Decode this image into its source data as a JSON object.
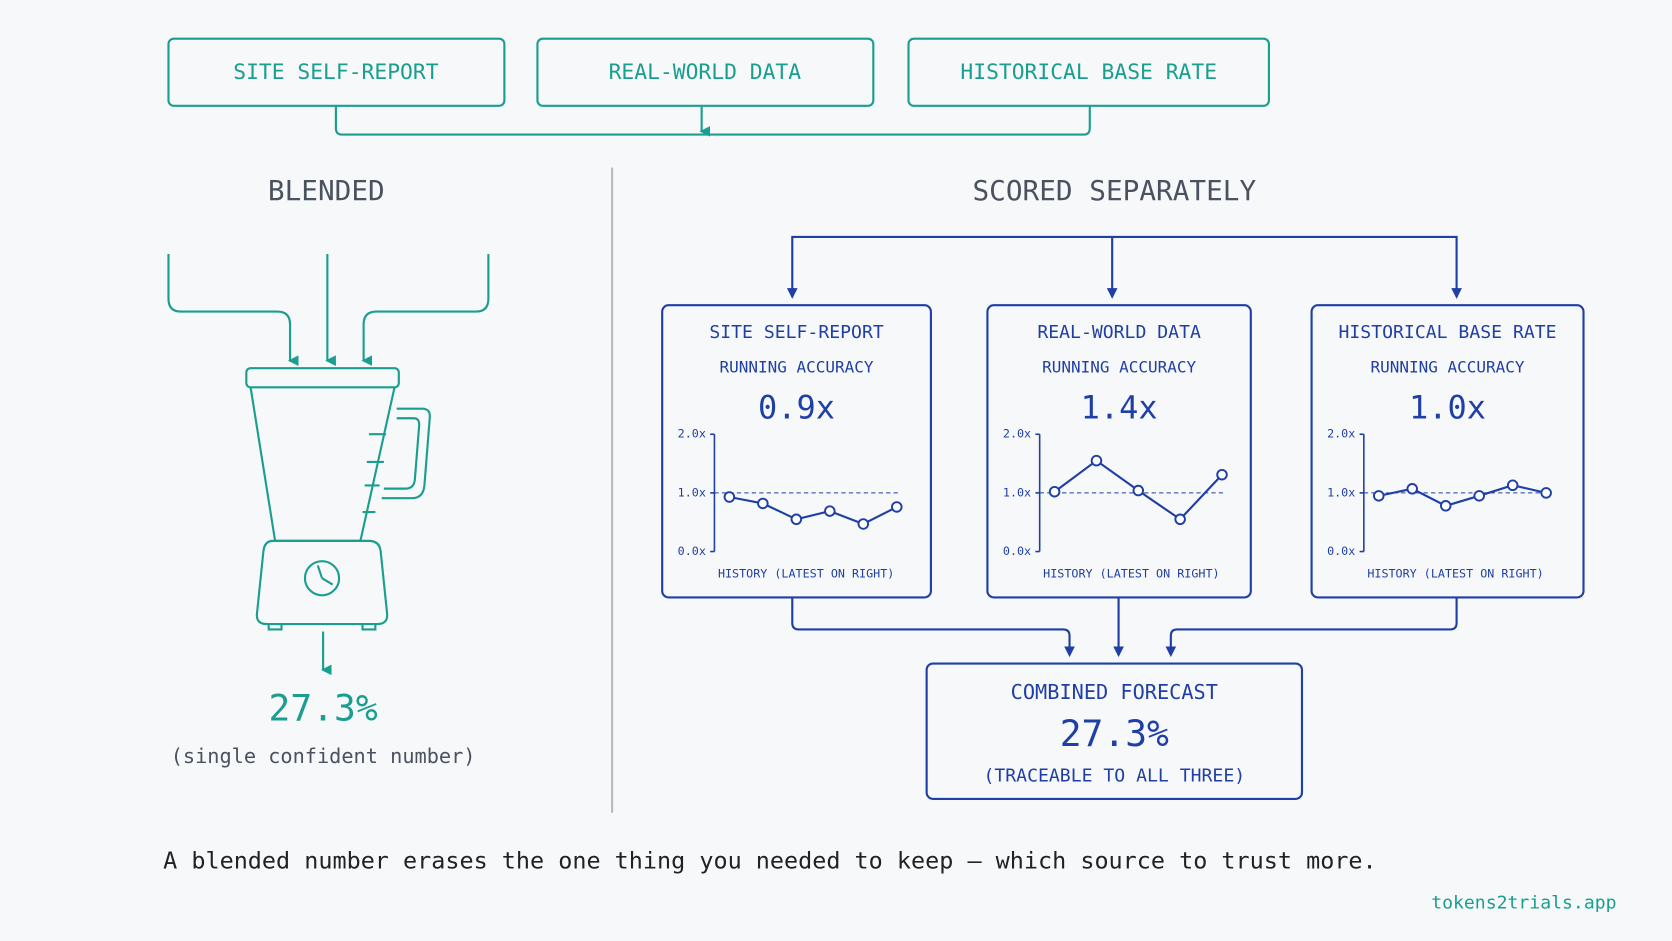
{
  "sources": [
    "SITE SELF-REPORT",
    "REAL-WORLD DATA",
    "HISTORICAL BASE RATE"
  ],
  "blended": {
    "title": "BLENDED",
    "result": "27.3%",
    "note": "(single confident number)"
  },
  "separate": {
    "title": "SCORED SEPARATELY",
    "panels": [
      {
        "name": "SITE SELF-REPORT",
        "metric_label": "RUNNING ACCURACY",
        "metric": "0.9x",
        "chart": {
          "type": "line",
          "ylim": [
            0,
            2
          ],
          "yticks": [
            {
              "value": 0,
              "label": "0.0x"
            },
            {
              "value": 1,
              "label": "1.0x"
            },
            {
              "value": 2,
              "label": "2.0x"
            }
          ],
          "xlabel": "HISTORY (LATEST ON RIGHT)",
          "values": [
            0.93,
            0.82,
            0.55,
            0.69,
            0.47,
            0.76
          ]
        }
      },
      {
        "name": "REAL-WORLD DATA",
        "metric_label": "RUNNING ACCURACY",
        "metric": "1.4x",
        "chart": {
          "type": "line",
          "ylim": [
            0,
            2
          ],
          "yticks": [
            {
              "value": 0,
              "label": "0.0x"
            },
            {
              "value": 1,
              "label": "1.0x"
            },
            {
              "value": 2,
              "label": "2.0x"
            }
          ],
          "xlabel": "HISTORY (LATEST ON RIGHT)",
          "values": [
            1.02,
            1.55,
            1.04,
            0.55,
            1.31
          ]
        }
      },
      {
        "name": "HISTORICAL BASE RATE",
        "metric_label": "RUNNING ACCURACY",
        "metric": "1.0x",
        "chart": {
          "type": "line",
          "ylim": [
            0,
            2
          ],
          "yticks": [
            {
              "value": 0,
              "label": "0.0x"
            },
            {
              "value": 1,
              "label": "1.0x"
            },
            {
              "value": 2,
              "label": "2.0x"
            }
          ],
          "xlabel": "HISTORY (LATEST ON RIGHT)",
          "values": [
            0.95,
            1.07,
            0.78,
            0.95,
            1.13,
            1.0
          ]
        }
      }
    ],
    "combined": {
      "title": "COMBINED FORECAST",
      "result": "27.3%",
      "note": "(TRACEABLE TO ALL THREE)"
    }
  },
  "caption": "A blended number erases the one thing you needed to keep – which source to trust more.",
  "footer": "tokens2trials.app"
}
